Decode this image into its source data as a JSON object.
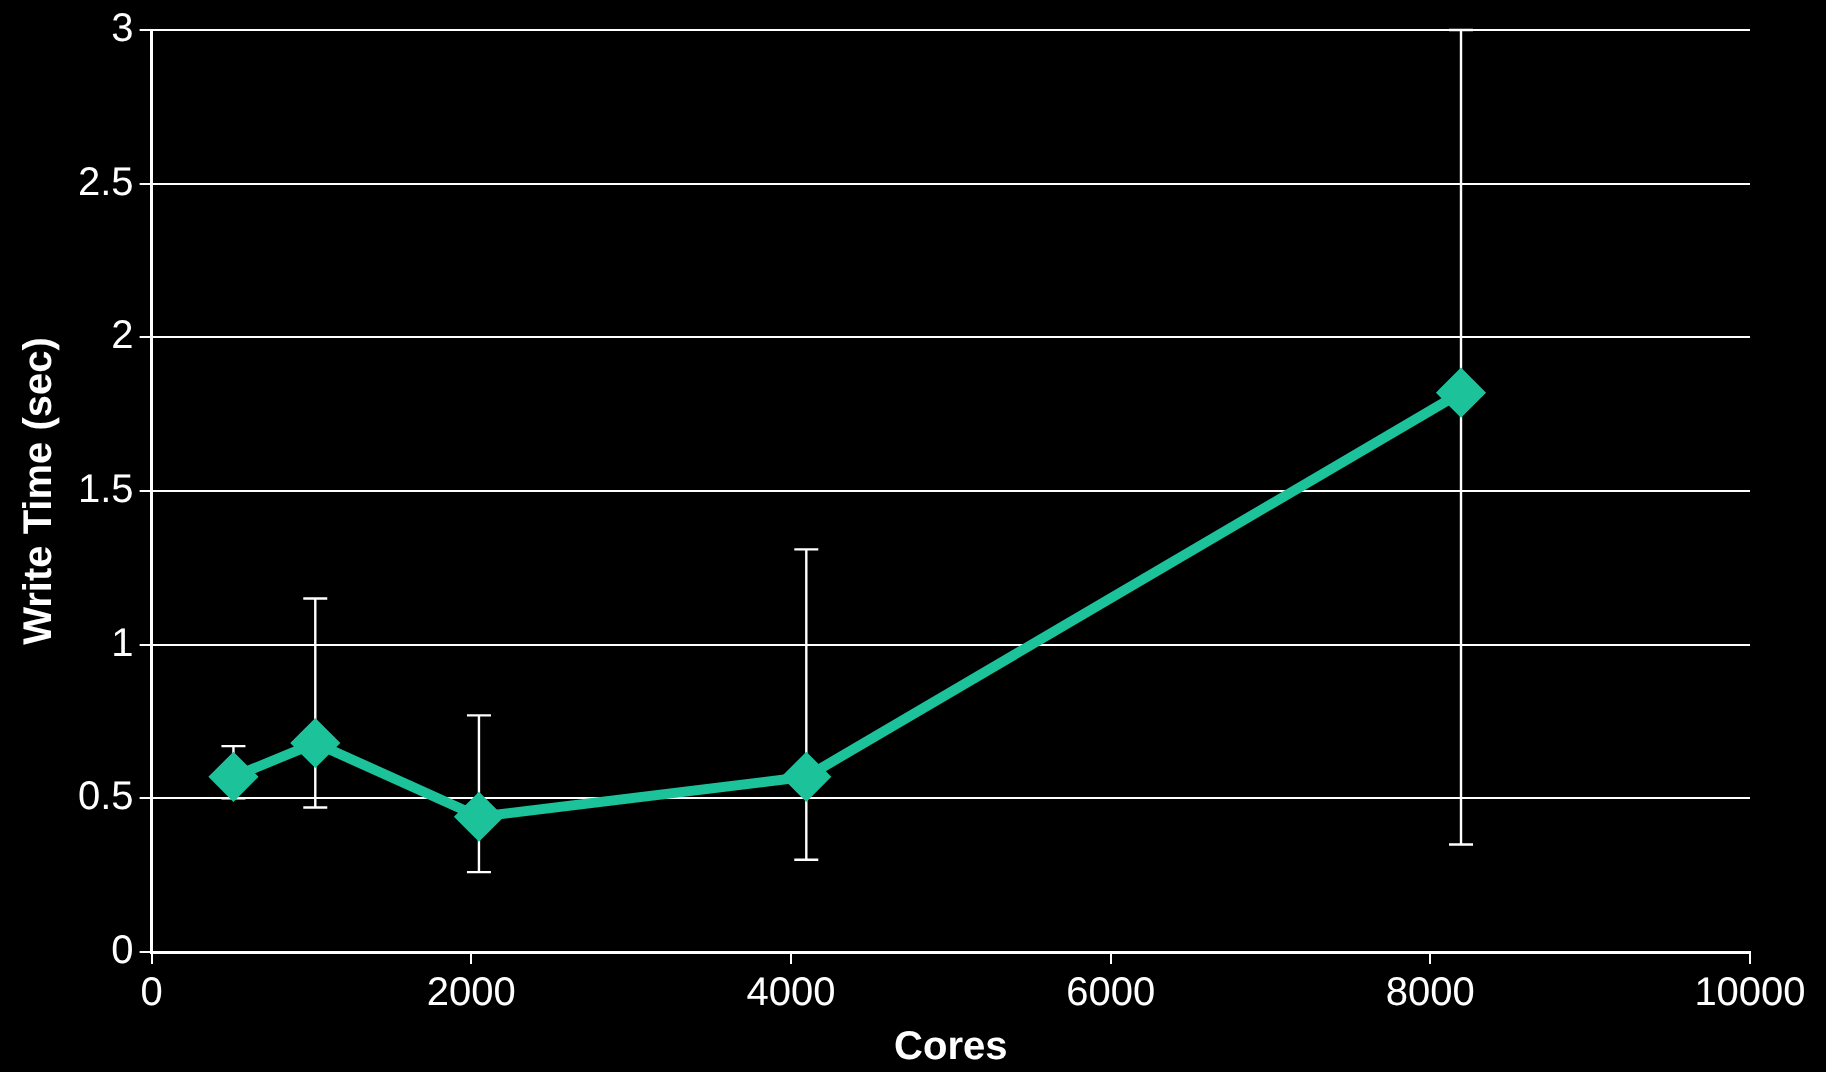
{
  "chart_data": {
    "type": "line",
    "xlabel": "Cores",
    "ylabel": "Write Time (sec)",
    "x": [
      512,
      1024,
      2048,
      4096,
      8192
    ],
    "series": [
      {
        "color": "#1cc29a",
        "values": [
          0.57,
          0.68,
          0.44,
          0.57,
          1.82
        ],
        "errors": [
          [
            0.5,
            0.67
          ],
          [
            0.47,
            1.15
          ],
          [
            0.26,
            0.77
          ],
          [
            0.3,
            1.31
          ],
          [
            0.35,
            3.0
          ]
        ]
      }
    ],
    "xlim": [
      0,
      10000
    ],
    "xticks": [
      0,
      2000,
      4000,
      6000,
      8000,
      10000
    ],
    "ylim": [
      0,
      3
    ],
    "yticks": [
      0,
      0.5,
      1,
      1.5,
      2,
      2.5,
      3
    ],
    "grid": "y",
    "legend": false,
    "marker": "diamond",
    "line_style": "solid"
  }
}
